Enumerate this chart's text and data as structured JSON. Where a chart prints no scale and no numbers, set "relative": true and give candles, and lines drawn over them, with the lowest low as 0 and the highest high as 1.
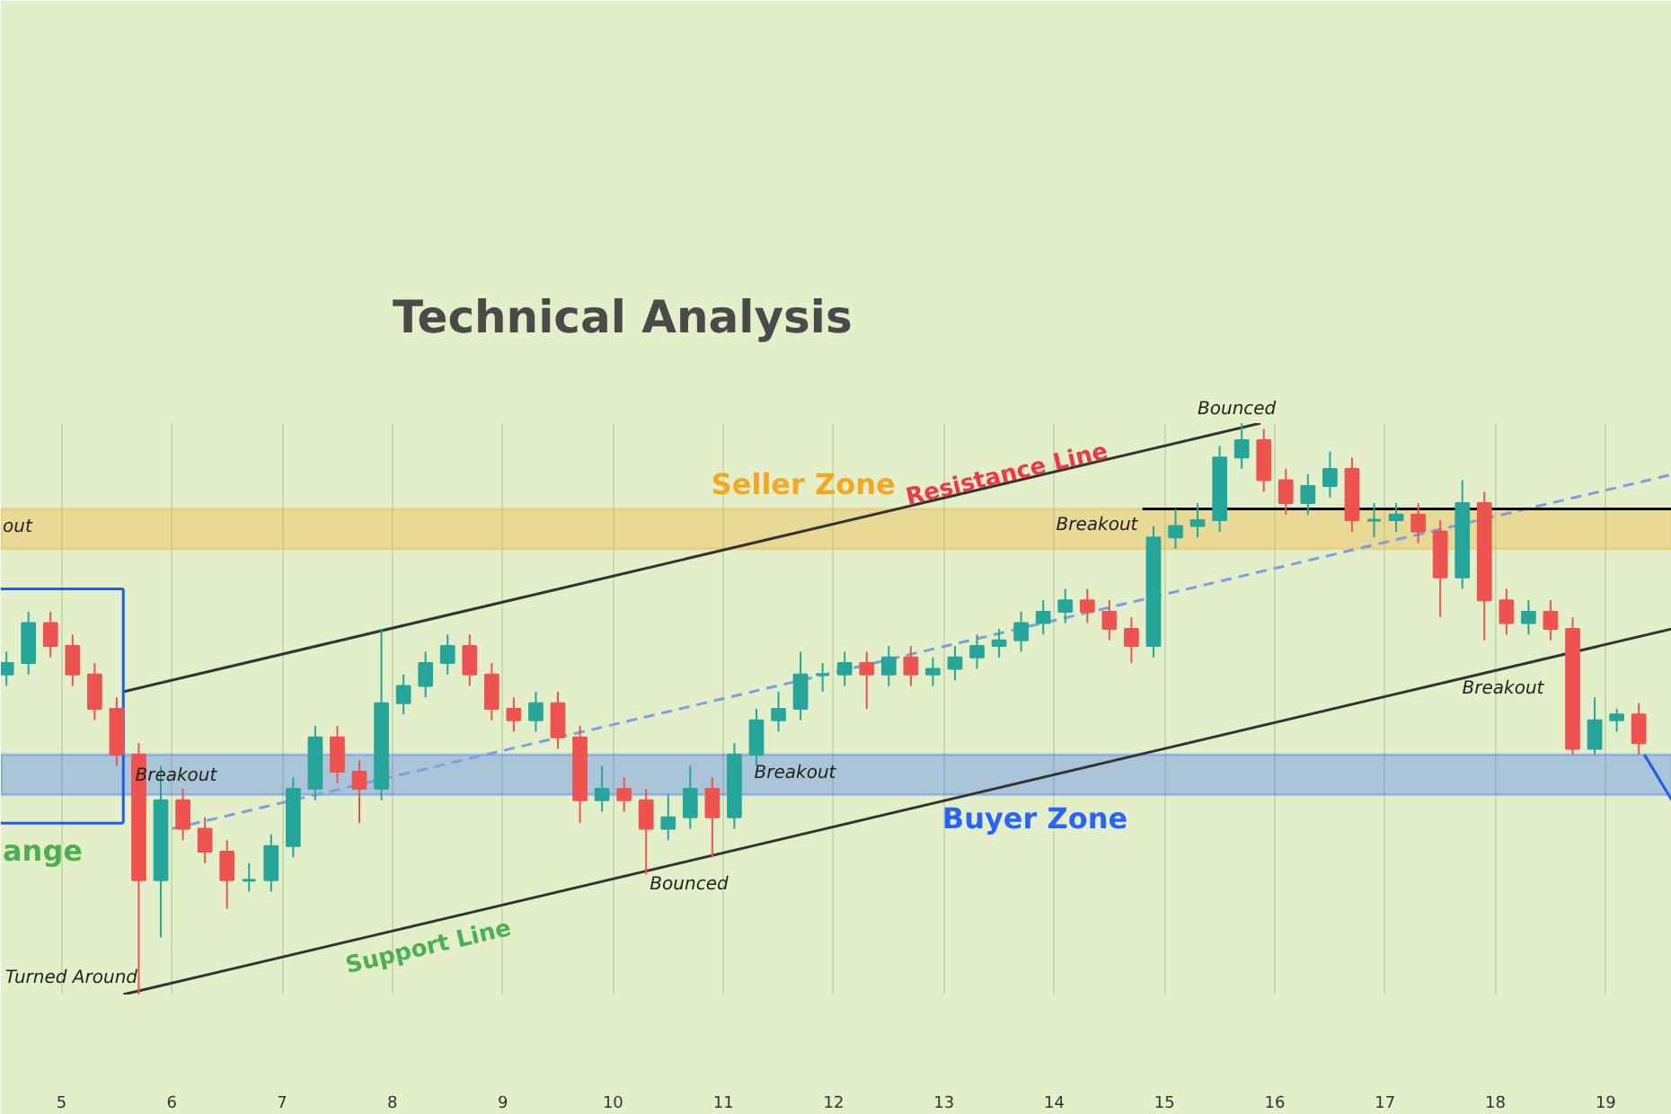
{
  "chart_data": {
    "type": "candlestick",
    "title": "Technical Analysis",
    "relative": true,
    "xlim": [
      4.45,
      19.6
    ],
    "xticks": [
      5,
      6,
      7,
      8,
      9,
      10,
      11,
      12,
      13,
      14,
      15,
      16,
      17,
      18,
      19
    ],
    "tick_labels": "x",
    "grid": "x",
    "x": [
      4.5,
      4.7,
      4.9,
      5.1,
      5.3,
      5.5,
      5.7,
      5.9,
      6.1,
      6.3,
      6.5,
      6.7,
      6.9,
      7.1,
      7.3,
      7.5,
      7.7,
      7.9,
      8.1,
      8.3,
      8.5,
      8.7,
      8.9,
      9.1,
      9.3,
      9.5,
      9.7,
      9.9,
      10.1,
      10.3,
      10.5,
      10.7,
      10.9,
      11.1,
      11.3,
      11.5,
      11.7,
      11.9,
      12.1,
      12.3,
      12.5,
      12.7,
      12.9,
      13.1,
      13.3,
      13.5,
      13.7,
      13.9,
      14.1,
      14.3,
      14.5,
      14.7,
      14.9,
      15.1,
      15.3,
      15.5,
      15.7,
      15.9,
      16.1,
      16.3,
      16.5,
      16.7,
      16.9,
      17.1,
      17.3,
      17.5,
      17.7,
      17.9,
      18.1,
      18.3,
      18.5,
      18.7,
      18.9,
      19.1,
      19.3
    ],
    "ohlc": [
      [
        0.56,
        0.6,
        0.54,
        0.58
      ],
      [
        0.58,
        0.67,
        0.56,
        0.65
      ],
      [
        0.65,
        0.67,
        0.59,
        0.61
      ],
      [
        0.61,
        0.63,
        0.54,
        0.56
      ],
      [
        0.56,
        0.58,
        0.48,
        0.5
      ],
      [
        0.5,
        0.52,
        0.4,
        0.42
      ],
      [
        0.42,
        0.44,
        0.0,
        0.2
      ],
      [
        0.2,
        0.4,
        0.1,
        0.34
      ],
      [
        0.34,
        0.36,
        0.27,
        0.29
      ],
      [
        0.29,
        0.31,
        0.23,
        0.25
      ],
      [
        0.25,
        0.27,
        0.15,
        0.2
      ],
      [
        0.2,
        0.23,
        0.18,
        0.2
      ],
      [
        0.2,
        0.28,
        0.18,
        0.26
      ],
      [
        0.26,
        0.38,
        0.24,
        0.36
      ],
      [
        0.36,
        0.47,
        0.34,
        0.45
      ],
      [
        0.45,
        0.47,
        0.37,
        0.39
      ],
      [
        0.39,
        0.41,
        0.3,
        0.36
      ],
      [
        0.36,
        0.64,
        0.34,
        0.51
      ],
      [
        0.51,
        0.56,
        0.49,
        0.54
      ],
      [
        0.54,
        0.6,
        0.52,
        0.58
      ],
      [
        0.58,
        0.63,
        0.56,
        0.61
      ],
      [
        0.61,
        0.63,
        0.54,
        0.56
      ],
      [
        0.56,
        0.58,
        0.48,
        0.5
      ],
      [
        0.5,
        0.52,
        0.46,
        0.48
      ],
      [
        0.48,
        0.53,
        0.46,
        0.51
      ],
      [
        0.51,
        0.53,
        0.43,
        0.45
      ],
      [
        0.45,
        0.47,
        0.3,
        0.34
      ],
      [
        0.34,
        0.4,
        0.32,
        0.36
      ],
      [
        0.36,
        0.38,
        0.32,
        0.34
      ],
      [
        0.34,
        0.36,
        0.21,
        0.29
      ],
      [
        0.29,
        0.35,
        0.27,
        0.31
      ],
      [
        0.31,
        0.4,
        0.29,
        0.36
      ],
      [
        0.36,
        0.38,
        0.24,
        0.31
      ],
      [
        0.31,
        0.44,
        0.29,
        0.42
      ],
      [
        0.42,
        0.5,
        0.4,
        0.48
      ],
      [
        0.48,
        0.53,
        0.46,
        0.5
      ],
      [
        0.5,
        0.6,
        0.48,
        0.56
      ],
      [
        0.56,
        0.58,
        0.53,
        0.56
      ],
      [
        0.56,
        0.6,
        0.54,
        0.58
      ],
      [
        0.58,
        0.6,
        0.5,
        0.56
      ],
      [
        0.56,
        0.61,
        0.54,
        0.59
      ],
      [
        0.59,
        0.61,
        0.54,
        0.56
      ],
      [
        0.56,
        0.59,
        0.54,
        0.57
      ],
      [
        0.57,
        0.61,
        0.55,
        0.59
      ],
      [
        0.59,
        0.63,
        0.57,
        0.61
      ],
      [
        0.61,
        0.64,
        0.59,
        0.62
      ],
      [
        0.62,
        0.67,
        0.6,
        0.65
      ],
      [
        0.65,
        0.69,
        0.63,
        0.67
      ],
      [
        0.67,
        0.71,
        0.65,
        0.69
      ],
      [
        0.69,
        0.71,
        0.65,
        0.67
      ],
      [
        0.67,
        0.69,
        0.62,
        0.64
      ],
      [
        0.64,
        0.66,
        0.58,
        0.61
      ],
      [
        0.61,
        0.82,
        0.59,
        0.8
      ],
      [
        0.8,
        0.85,
        0.78,
        0.82
      ],
      [
        0.82,
        0.86,
        0.8,
        0.83
      ],
      [
        0.83,
        0.96,
        0.81,
        0.94
      ],
      [
        0.94,
        1.0,
        0.92,
        0.97
      ],
      [
        0.97,
        0.99,
        0.88,
        0.9
      ],
      [
        0.9,
        0.92,
        0.84,
        0.86
      ],
      [
        0.86,
        0.91,
        0.84,
        0.89
      ],
      [
        0.89,
        0.95,
        0.87,
        0.92
      ],
      [
        0.92,
        0.94,
        0.81,
        0.83
      ],
      [
        0.83,
        0.86,
        0.8,
        0.83
      ],
      [
        0.83,
        0.86,
        0.81,
        0.84
      ],
      [
        0.84,
        0.86,
        0.79,
        0.81
      ],
      [
        0.81,
        0.83,
        0.66,
        0.73
      ],
      [
        0.73,
        0.9,
        0.71,
        0.86
      ],
      [
        0.86,
        0.88,
        0.62,
        0.69
      ],
      [
        0.69,
        0.71,
        0.63,
        0.65
      ],
      [
        0.65,
        0.69,
        0.63,
        0.67
      ],
      [
        0.67,
        0.69,
        0.62,
        0.64
      ],
      [
        0.64,
        0.66,
        0.42,
        0.43
      ],
      [
        0.43,
        0.52,
        0.42,
        0.48
      ],
      [
        0.48,
        0.5,
        0.46,
        0.49
      ],
      [
        0.49,
        0.51,
        0.42,
        0.44
      ]
    ],
    "series": [
      {
        "type": "line",
        "x": [
          5.56,
          15.87
        ],
        "values": [
          0.53,
          1.0
        ],
        "color": "#333333"
      },
      {
        "type": "line",
        "x": [
          5.56,
          19.6
        ],
        "values": [
          0.0,
          0.64
        ],
        "color": "#333333"
      },
      {
        "type": "line",
        "x": [
          6.0,
          19.6
        ],
        "values": [
          0.29,
          0.91
        ],
        "color": "#7b9fe0",
        "line_style": "dashed"
      },
      {
        "type": "line",
        "x": [
          14.8,
          19.6
        ],
        "values": [
          0.85,
          0.85
        ],
        "color": "#000000"
      },
      {
        "type": "line",
        "x": [
          4.45,
          5.56
        ],
        "values": [
          0.71,
          0.71
        ],
        "color": "#1e5bf0"
      },
      {
        "type": "line",
        "x": [
          4.45,
          5.56
        ],
        "values": [
          0.3,
          0.3
        ],
        "color": "#1e5bf0"
      },
      {
        "type": "line",
        "x": [
          5.56,
          5.56
        ],
        "values": [
          0.71,
          0.3
        ],
        "color": "#1e5bf0"
      },
      {
        "type": "line",
        "x": [
          19.35,
          19.6
        ],
        "values": [
          0.42,
          0.34
        ],
        "color": "#1e5bf0"
      }
    ],
    "bands": [
      {
        "axis": "y",
        "from": 0.78,
        "to": 0.85,
        "label": "Seller Zone",
        "color": "#f5a623"
      },
      {
        "axis": "y",
        "from": 0.35,
        "to": 0.42,
        "label": "Buyer Zone",
        "color": "#2962ff"
      }
    ],
    "annotations": [
      "Bounced",
      "Bounced",
      "Turned Around",
      {
        "text": "Breakout",
        "x": 5.5,
        "y": 0.42
      },
      "Breakout",
      "Breakout",
      "Breakout",
      "out",
      "ange",
      "Resistance Line",
      "Support Line"
    ]
  }
}
